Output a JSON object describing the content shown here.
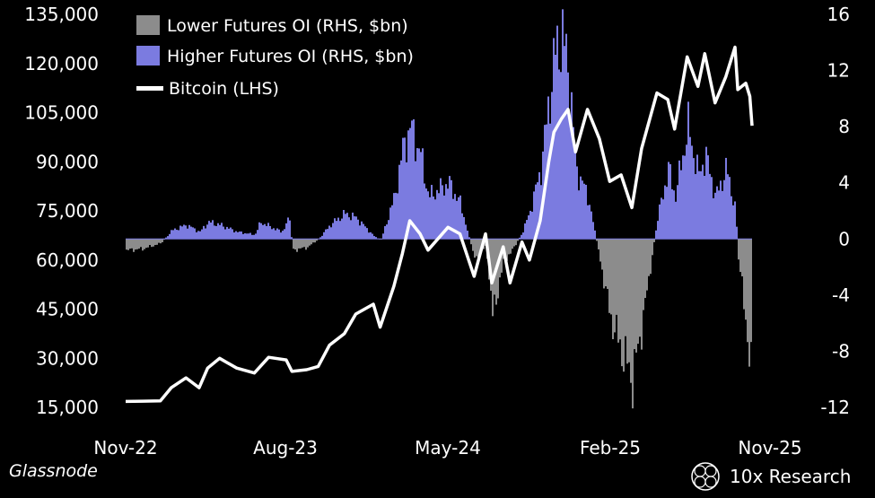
{
  "chart_data": {
    "type": "bar+line",
    "xlabels": [
      "Nov-22",
      "Aug-23",
      "May-24",
      "Feb-25",
      "Nov-25"
    ],
    "y_left": {
      "ticks": [
        15000,
        30000,
        45000,
        60000,
        75000,
        90000,
        105000,
        120000,
        135000
      ],
      "labels": [
        "15,000",
        "30,000",
        "45,000",
        "60,000",
        "75,000",
        "90,000",
        "105,000",
        "120,000",
        "135,000"
      ],
      "range": [
        15000,
        135000
      ]
    },
    "y_right": {
      "ticks": [
        -12,
        -8,
        -4,
        0,
        4,
        8,
        12,
        16
      ],
      "labels": [
        "-12",
        "-8",
        "-4",
        "0",
        "4",
        "8",
        "12",
        "16"
      ],
      "range": [
        -12,
        16
      ]
    },
    "legend": [
      {
        "label": "Lower Futures OI (RHS, $bn)",
        "color": "#8c8c8c"
      },
      {
        "label": "Higher Futures OI (RHS, $bn)",
        "color": "#7b7be0"
      },
      {
        "label": "Bitcoin (LHS)",
        "color": "#ffffff"
      }
    ],
    "bitcoin_series": [
      [
        "2022-11-01",
        16800
      ],
      [
        "2022-12-01",
        16900
      ],
      [
        "2023-01-01",
        17000
      ],
      [
        "2023-01-20",
        21000
      ],
      [
        "2023-02-15",
        24000
      ],
      [
        "2023-03-10",
        21000
      ],
      [
        "2023-03-25",
        27000
      ],
      [
        "2023-04-15",
        30000
      ],
      [
        "2023-05-15",
        27000
      ],
      [
        "2023-06-15",
        25500
      ],
      [
        "2023-07-10",
        30300
      ],
      [
        "2023-08-10",
        29500
      ],
      [
        "2023-08-20",
        26000
      ],
      [
        "2023-09-15",
        26500
      ],
      [
        "2023-10-05",
        27500
      ],
      [
        "2023-10-25",
        34000
      ],
      [
        "2023-11-20",
        37500
      ],
      [
        "2023-12-10",
        43500
      ],
      [
        "2024-01-10",
        46500
      ],
      [
        "2024-01-22",
        39500
      ],
      [
        "2024-02-15",
        52000
      ],
      [
        "2024-03-01",
        62000
      ],
      [
        "2024-03-14",
        72000
      ],
      [
        "2024-04-01",
        68000
      ],
      [
        "2024-04-15",
        63000
      ],
      [
        "2024-05-20",
        70000
      ],
      [
        "2024-06-10",
        68000
      ],
      [
        "2024-07-05",
        55000
      ],
      [
        "2024-07-25",
        68000
      ],
      [
        "2024-08-05",
        53000
      ],
      [
        "2024-08-25",
        64000
      ],
      [
        "2024-09-06",
        53000
      ],
      [
        "2024-09-27",
        65500
      ],
      [
        "2024-10-10",
        60000
      ],
      [
        "2024-10-29",
        72000
      ],
      [
        "2024-11-13",
        90000
      ],
      [
        "2024-11-22",
        99000
      ],
      [
        "2024-12-05",
        103000
      ],
      [
        "2024-12-17",
        106000
      ],
      [
        "2024-12-30",
        93000
      ],
      [
        "2025-01-20",
        106000
      ],
      [
        "2025-02-10",
        97000
      ],
      [
        "2025-02-28",
        84000
      ],
      [
        "2025-03-20",
        86000
      ],
      [
        "2025-04-08",
        76000
      ],
      [
        "2025-04-25",
        94000
      ],
      [
        "2025-05-22",
        111000
      ],
      [
        "2025-06-10",
        109000
      ],
      [
        "2025-06-22",
        100000
      ],
      [
        "2025-07-14",
        122000
      ],
      [
        "2025-08-02",
        113000
      ],
      [
        "2025-08-14",
        123000
      ],
      [
        "2025-09-01",
        108000
      ],
      [
        "2025-09-20",
        116000
      ],
      [
        "2025-10-06",
        125000
      ],
      [
        "2025-10-11",
        112000
      ],
      [
        "2025-10-25",
        114000
      ],
      [
        "2025-11-01",
        110000
      ],
      [
        "2025-11-05",
        101000
      ]
    ],
    "oi_change_series": [
      [
        "2022-11-01",
        -0.8
      ],
      [
        "2022-12-01",
        -0.7
      ],
      [
        "2023-01-01",
        -0.3
      ],
      [
        "2023-01-20",
        0.6
      ],
      [
        "2023-02-15",
        1.0
      ],
      [
        "2023-03-10",
        0.5
      ],
      [
        "2023-03-25",
        1.2
      ],
      [
        "2023-04-15",
        1.0
      ],
      [
        "2023-05-15",
        0.5
      ],
      [
        "2023-06-15",
        0.3
      ],
      [
        "2023-06-25",
        1.2
      ],
      [
        "2023-07-10",
        0.9
      ],
      [
        "2023-08-01",
        0.5
      ],
      [
        "2023-08-15",
        1.5
      ],
      [
        "2023-08-20",
        -0.8
      ],
      [
        "2023-09-15",
        -0.6
      ],
      [
        "2023-10-05",
        0.0
      ],
      [
        "2023-10-25",
        1.0
      ],
      [
        "2023-11-20",
        1.8
      ],
      [
        "2023-12-10",
        1.5
      ],
      [
        "2024-01-10",
        0.2
      ],
      [
        "2024-01-22",
        -0.1
      ],
      [
        "2024-02-15",
        3.0
      ],
      [
        "2024-03-01",
        6.5
      ],
      [
        "2024-03-14",
        8.0
      ],
      [
        "2024-04-01",
        6.0
      ],
      [
        "2024-04-15",
        3.0
      ],
      [
        "2024-05-20",
        4.0
      ],
      [
        "2024-06-10",
        2.5
      ],
      [
        "2024-07-05",
        -1.5
      ],
      [
        "2024-07-25",
        -0.5
      ],
      [
        "2024-08-05",
        -5.5
      ],
      [
        "2024-08-25",
        -1.5
      ],
      [
        "2024-09-06",
        -1.0
      ],
      [
        "2024-09-27",
        0.5
      ],
      [
        "2024-10-10",
        2.0
      ],
      [
        "2024-10-29",
        5.0
      ],
      [
        "2024-11-13",
        10.0
      ],
      [
        "2024-11-22",
        13.0
      ],
      [
        "2024-12-05",
        14.5
      ],
      [
        "2024-12-17",
        12.0
      ],
      [
        "2024-12-30",
        5.0
      ],
      [
        "2025-01-20",
        3.0
      ],
      [
        "2025-02-10",
        -1.5
      ],
      [
        "2025-02-28",
        -5.5
      ],
      [
        "2025-03-20",
        -8.0
      ],
      [
        "2025-04-08",
        -10.0
      ],
      [
        "2025-04-25",
        -6.0
      ],
      [
        "2025-05-22",
        1.5
      ],
      [
        "2025-06-10",
        5.0
      ],
      [
        "2025-06-22",
        3.0
      ],
      [
        "2025-07-14",
        8.0
      ],
      [
        "2025-08-02",
        4.5
      ],
      [
        "2025-08-14",
        6.0
      ],
      [
        "2025-09-01",
        3.0
      ],
      [
        "2025-09-20",
        5.0
      ],
      [
        "2025-10-06",
        2.0
      ],
      [
        "2025-10-11",
        -1.5
      ],
      [
        "2025-10-25",
        -6.0
      ],
      [
        "2025-11-01",
        -10.0
      ],
      [
        "2025-11-05",
        -9.0
      ]
    ],
    "grid": false
  },
  "footer": {
    "source": "Glassnode",
    "brand": "10x Research"
  }
}
